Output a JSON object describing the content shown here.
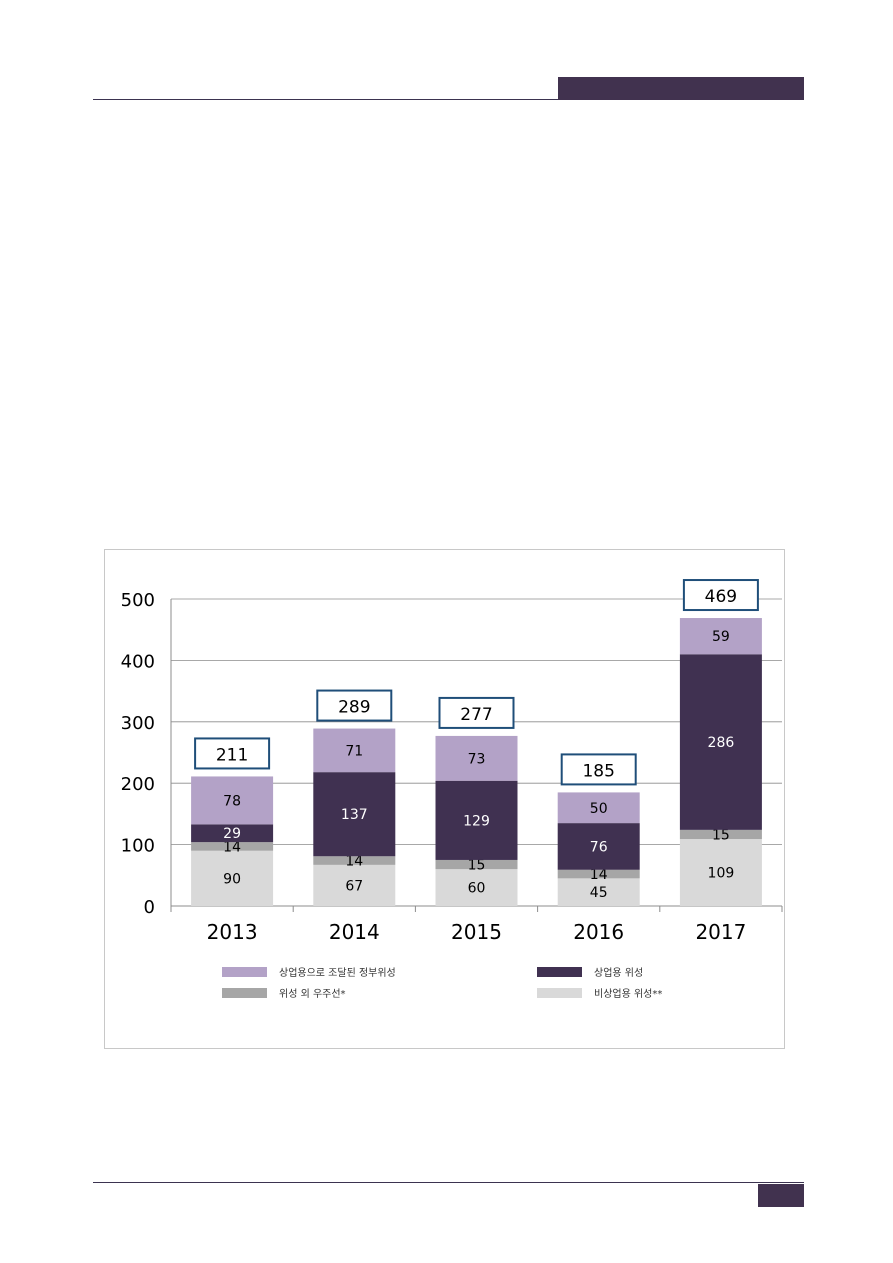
{
  "chart_data": {
    "type": "bar",
    "stacked": true,
    "categories": [
      "2013",
      "2014",
      "2015",
      "2016",
      "2017"
    ],
    "series": [
      {
        "name": "비상업용 위성**",
        "color": "#d9d9d9",
        "values": [
          90,
          67,
          60,
          45,
          109
        ]
      },
      {
        "name": "위성 외 우주선*",
        "color": "#a6a6a6",
        "values": [
          14,
          14,
          15,
          14,
          15
        ]
      },
      {
        "name": "상업용 위성",
        "color": "#403151",
        "values": [
          29,
          137,
          129,
          76,
          286
        ]
      },
      {
        "name": "상업용으로 조달된 정부위성",
        "color": "#b3a2c7",
        "values": [
          78,
          71,
          73,
          50,
          59
        ]
      }
    ],
    "series_label_colors": [
      "#000000",
      "#000000",
      "#ffffff",
      "#000000"
    ],
    "totals": [
      211,
      289,
      277,
      185,
      469
    ],
    "ylim": [
      0,
      500
    ],
    "y_ticks": [
      0,
      100,
      200,
      300,
      400,
      500
    ],
    "grid": true,
    "legend_position": "bottom",
    "legend_order": [
      3,
      2,
      1,
      0
    ]
  }
}
